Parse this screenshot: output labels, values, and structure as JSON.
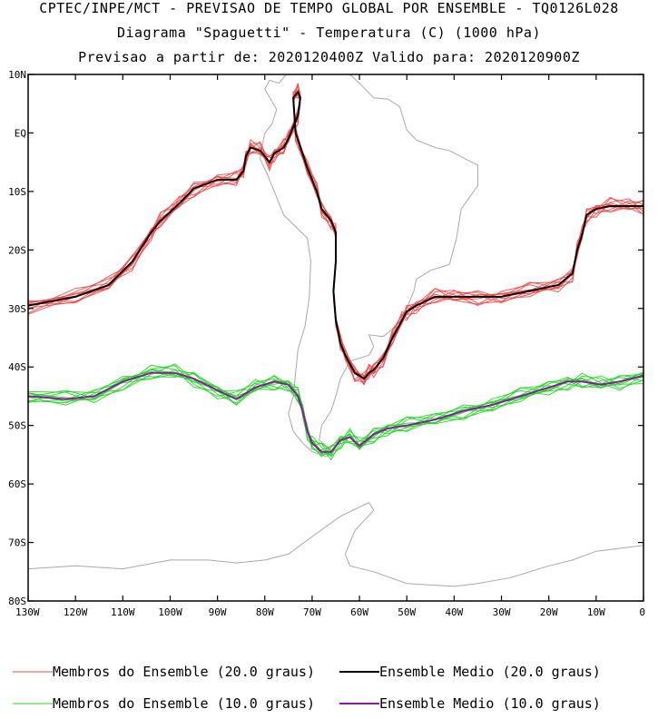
{
  "header": {
    "line1": "CPTEC/INPE/MCT - PREVISAO DE TEMPO GLOBAL POR ENSEMBLE - TQ0126L028",
    "line2": "Diagrama \"Spaguetti\" - Temperatura (C) (1000 hPa)",
    "line3": "Previsao a partir de: 2020120400Z  Valido para: 2020120900Z"
  },
  "colors": {
    "member_20": "#f04848",
    "mean_20": "#000000",
    "member_10": "#22d422",
    "mean_10": "#8a1aa0",
    "coast": "#a8a8a8",
    "frame": "#000000"
  },
  "chart_data": {
    "type": "line",
    "map_extent": {
      "lon": [
        -130,
        0
      ],
      "lat": [
        -80,
        10
      ]
    },
    "y_ticks": [
      "10N",
      "EQ",
      "10S",
      "20S",
      "30S",
      "40S",
      "50S",
      "60S",
      "70S",
      "80S"
    ],
    "x_ticks": [
      "130W",
      "120W",
      "110W",
      "100W",
      "90W",
      "80W",
      "70W",
      "60W",
      "50W",
      "40W",
      "30W",
      "20W",
      "10W",
      "0"
    ],
    "series": [
      {
        "name": "Ensemble Medio (20.0 graus)",
        "role": "mean",
        "color": "#000000",
        "lon": [
          -130,
          -120,
          -113,
          -108,
          -104,
          -102,
          -98,
          -95,
          -90,
          -86,
          -84.5,
          -84,
          -83,
          -81,
          -79,
          -78,
          -76,
          -75,
          -73,
          -72.5,
          -73,
          -74,
          -73.5,
          -71,
          -69,
          -68,
          -66,
          -65,
          -65,
          -65.5,
          -65,
          -64,
          -63,
          -61,
          -59,
          -58,
          -57,
          -55,
          -53,
          -51,
          -50,
          -48,
          -44,
          -40,
          -35,
          -30,
          -24,
          -18,
          -15,
          -14,
          -13,
          -12,
          -10,
          -7,
          -3,
          0
        ],
        "lat": [
          -29.5,
          -28,
          -26,
          -22,
          -17,
          -15,
          -12,
          -9.5,
          -8,
          -8,
          -6.5,
          -4,
          -2.5,
          -3,
          -5,
          -3.5,
          -2.5,
          -1,
          3,
          6,
          7,
          6,
          0,
          -6,
          -10,
          -13,
          -15,
          -17,
          -22,
          -27,
          -32,
          -36,
          -38,
          -41,
          -42,
          -41,
          -40.5,
          -38.5,
          -35,
          -32,
          -30.5,
          -29.5,
          -28,
          -28,
          -28,
          -28,
          -27,
          -26,
          -24,
          -20,
          -17.5,
          -14,
          -13,
          -12.5,
          -12.5,
          -12.5
        ]
      },
      {
        "name": "Ensemble Medio (10.0 graus)",
        "role": "mean",
        "color": "#8a1aa0",
        "lon": [
          -130,
          -122,
          -116,
          -110,
          -104,
          -99,
          -95,
          -90,
          -86,
          -82,
          -78,
          -75,
          -73,
          -72,
          -71,
          -70,
          -68,
          -66,
          -64,
          -62,
          -60,
          -57,
          -54,
          -50,
          -44,
          -38,
          -32,
          -26,
          -20,
          -16,
          -13,
          -9,
          -5,
          0
        ],
        "lat": [
          -45,
          -45.5,
          -45,
          -42.5,
          -41,
          -41,
          -42,
          -44,
          -45.5,
          -43.5,
          -42.5,
          -43,
          -45,
          -47.5,
          -51,
          -53,
          -54.5,
          -54.5,
          -52.5,
          -52,
          -53.5,
          -51.5,
          -50.5,
          -50,
          -49,
          -47.5,
          -46.5,
          -45,
          -43.5,
          -42.5,
          -42.5,
          -43,
          -42.5,
          -41.5
        ]
      }
    ],
    "member_spread": [
      {
        "name": "Membros do Ensemble (20.0 graus)",
        "color": "#f04848",
        "members": 9
      },
      {
        "name": "Membros do Ensemble (10.0 graus)",
        "color": "#22d422",
        "members": 9
      }
    ],
    "legend": [
      {
        "label": "Membros do Ensemble (20.0 graus)",
        "color": "#f04848",
        "weight": "thin"
      },
      {
        "label": "Ensemble Medio (20.0 graus)",
        "color": "#000000",
        "weight": "thick"
      },
      {
        "label": "Membros do Ensemble (10.0 graus)",
        "color": "#22d422",
        "weight": "thin"
      },
      {
        "label": "Ensemble Medio (10.0 graus)",
        "color": "#8a1aa0",
        "weight": "thick"
      }
    ],
    "legend_position": "bottom",
    "grid": false
  }
}
